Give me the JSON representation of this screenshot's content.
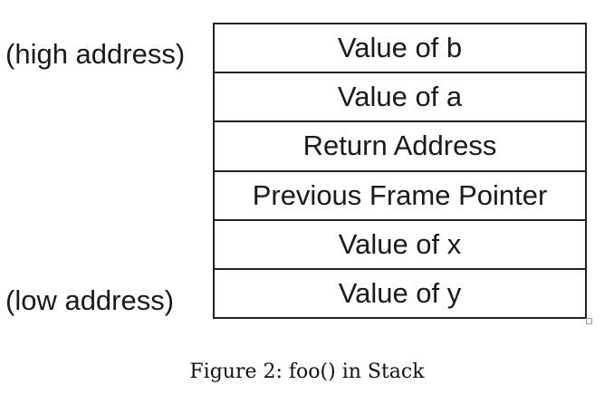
{
  "labels": {
    "high": "(high address)",
    "low": "(low address)"
  },
  "stack": {
    "cells": [
      "Value of b",
      "Value of a",
      "Return Address",
      "Previous Frame Pointer",
      "Value of x",
      "Value of y"
    ]
  },
  "caption": "Figure 2: foo() in Stack"
}
